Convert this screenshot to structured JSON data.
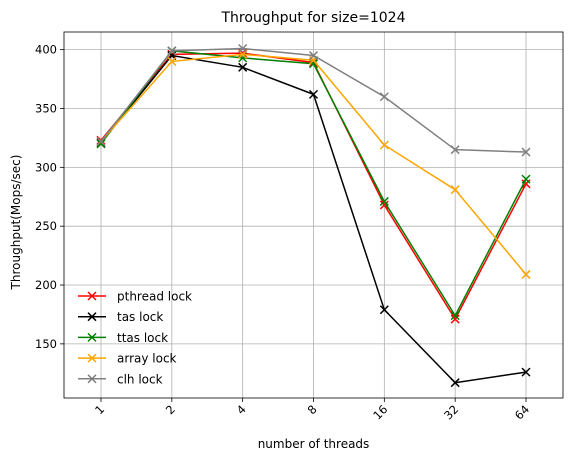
{
  "chart_data": {
    "type": "line",
    "title": "Throughput for size=1024",
    "xlabel": "number of threads",
    "ylabel": "Throughput(Mops/sec)",
    "categories": [
      "1",
      "2",
      "4",
      "8",
      "16",
      "32",
      "64"
    ],
    "yticks": [
      150,
      200,
      250,
      300,
      350,
      400
    ],
    "ylim": [
      104,
      415
    ],
    "grid": true,
    "legend_position": "lower-left",
    "marker": "x",
    "series": [
      {
        "name": "pthread lock",
        "color": "#ff0000",
        "values": [
          323,
          396,
          397,
          389,
          268,
          171,
          286
        ]
      },
      {
        "name": "tas lock",
        "color": "#000000",
        "values": [
          321,
          395,
          385,
          362,
          179,
          117,
          126
        ]
      },
      {
        "name": "ttas lock",
        "color": "#008000",
        "values": [
          320,
          399,
          393,
          388,
          271,
          174,
          290
        ]
      },
      {
        "name": "array lock",
        "color": "#ffa500",
        "values": [
          322,
          390,
          396,
          391,
          319,
          281,
          209
        ]
      },
      {
        "name": "clh lock",
        "color": "#808080",
        "values": [
          322,
          399,
          401,
          395,
          360,
          315,
          313
        ]
      }
    ]
  }
}
